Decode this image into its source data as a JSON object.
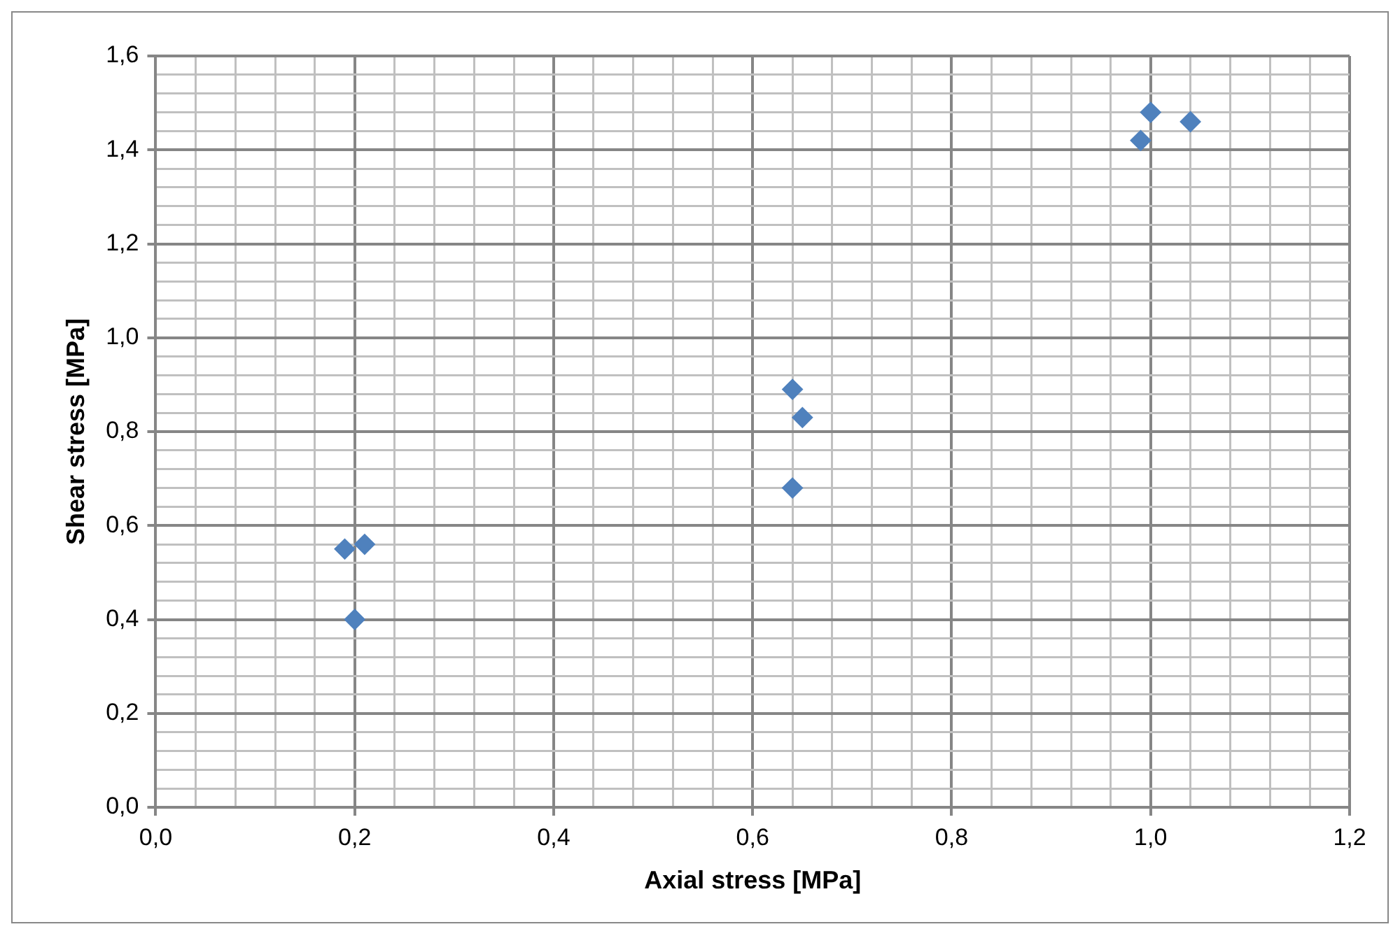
{
  "chart_data": {
    "type": "scatter",
    "xlabel": "Axial stress [MPa]",
    "ylabel": "Shear stress [MPa]",
    "x": [
      0.19,
      0.21,
      0.2,
      0.64,
      0.65,
      0.64,
      1.0,
      1.04,
      0.99
    ],
    "series": [
      {
        "color": "#4f81bd",
        "values": [
          0.55,
          0.56,
          0.4,
          0.89,
          0.83,
          0.68,
          1.48,
          1.46,
          1.42
        ]
      }
    ],
    "xlim": [
      0,
      1.2
    ],
    "ylim": [
      0,
      1.6
    ],
    "xticks": [
      {
        "value": 0,
        "label": "0,0"
      },
      {
        "value": 0.04,
        "label": null
      },
      {
        "value": 0.08,
        "label": null
      },
      {
        "value": 0.12,
        "label": null
      },
      {
        "value": 0.16,
        "label": null
      },
      {
        "value": 0.2,
        "label": "0,2"
      },
      {
        "value": 0.24,
        "label": null
      },
      {
        "value": 0.28,
        "label": null
      },
      {
        "value": 0.32,
        "label": null
      },
      {
        "value": 0.36,
        "label": null
      },
      {
        "value": 0.4,
        "label": "0,4"
      },
      {
        "value": 0.44,
        "label": null
      },
      {
        "value": 0.48,
        "label": null
      },
      {
        "value": 0.52,
        "label": null
      },
      {
        "value": 0.56,
        "label": null
      },
      {
        "value": 0.6,
        "label": "0,6"
      },
      {
        "value": 0.64,
        "label": null
      },
      {
        "value": 0.68,
        "label": null
      },
      {
        "value": 0.72,
        "label": null
      },
      {
        "value": 0.76,
        "label": null
      },
      {
        "value": 0.8,
        "label": "0,8"
      },
      {
        "value": 0.84,
        "label": null
      },
      {
        "value": 0.88,
        "label": null
      },
      {
        "value": 0.92,
        "label": null
      },
      {
        "value": 0.96,
        "label": null
      },
      {
        "value": 1.0,
        "label": "1,0"
      },
      {
        "value": 1.04,
        "label": null
      },
      {
        "value": 1.08,
        "label": null
      },
      {
        "value": 1.12,
        "label": null
      },
      {
        "value": 1.16,
        "label": null
      },
      {
        "value": 1.2,
        "label": "1,2"
      }
    ],
    "yticks": [
      {
        "value": 0,
        "label": "0,0"
      },
      {
        "value": 0.04,
        "label": null
      },
      {
        "value": 0.08,
        "label": null
      },
      {
        "value": 0.12,
        "label": null
      },
      {
        "value": 0.16,
        "label": null
      },
      {
        "value": 0.2,
        "label": "0,2"
      },
      {
        "value": 0.24,
        "label": null
      },
      {
        "value": 0.28,
        "label": null
      },
      {
        "value": 0.32,
        "label": null
      },
      {
        "value": 0.36,
        "label": null
      },
      {
        "value": 0.4,
        "label": "0,4"
      },
      {
        "value": 0.44,
        "label": null
      },
      {
        "value": 0.48,
        "label": null
      },
      {
        "value": 0.52,
        "label": null
      },
      {
        "value": 0.56,
        "label": null
      },
      {
        "value": 0.6,
        "label": "0,6"
      },
      {
        "value": 0.64,
        "label": null
      },
      {
        "value": 0.68,
        "label": null
      },
      {
        "value": 0.72,
        "label": null
      },
      {
        "value": 0.76,
        "label": null
      },
      {
        "value": 0.8,
        "label": "0,8"
      },
      {
        "value": 0.84,
        "label": null
      },
      {
        "value": 0.88,
        "label": null
      },
      {
        "value": 0.92,
        "label": null
      },
      {
        "value": 0.96,
        "label": null
      },
      {
        "value": 1.0,
        "label": "1,0"
      },
      {
        "value": 1.04,
        "label": null
      },
      {
        "value": 1.08,
        "label": null
      },
      {
        "value": 1.12,
        "label": null
      },
      {
        "value": 1.16,
        "label": null
      },
      {
        "value": 1.2,
        "label": "1,2"
      },
      {
        "value": 1.24,
        "label": null
      },
      {
        "value": 1.28,
        "label": null
      },
      {
        "value": 1.32,
        "label": null
      },
      {
        "value": 1.36,
        "label": null
      },
      {
        "value": 1.4,
        "label": "1,4"
      },
      {
        "value": 1.44,
        "label": null
      },
      {
        "value": 1.48,
        "label": null
      },
      {
        "value": 1.52,
        "label": null
      },
      {
        "value": 1.56,
        "label": null
      },
      {
        "value": 1.6,
        "label": "1,6"
      }
    ],
    "grid": true,
    "legend": false,
    "marker": "diamond"
  }
}
